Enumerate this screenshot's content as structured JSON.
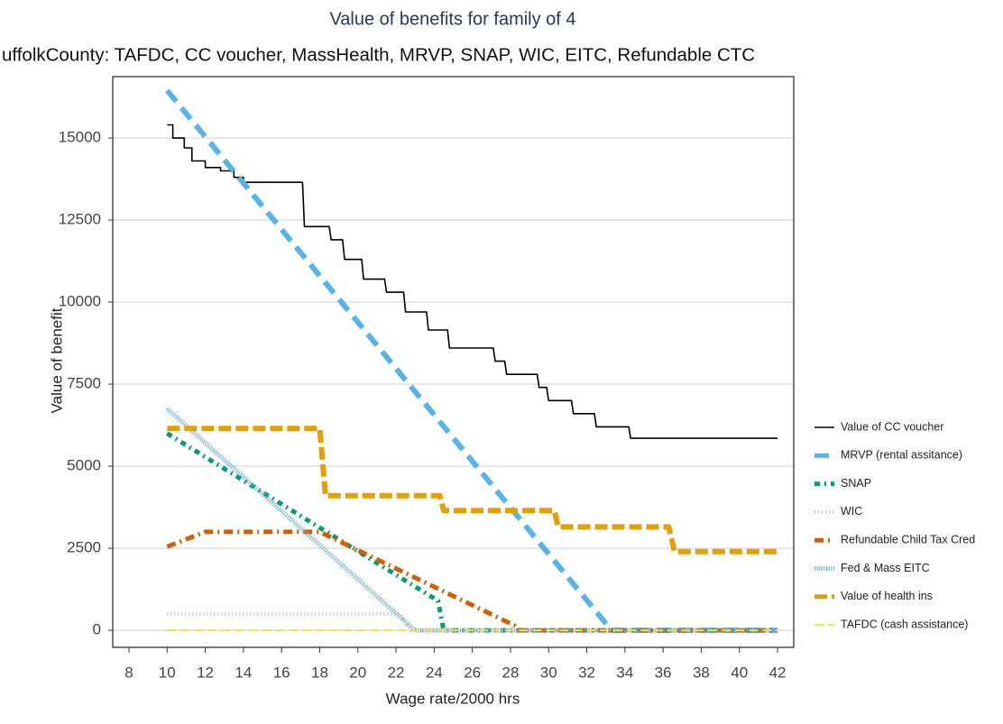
{
  "chart_data": {
    "type": "line",
    "title": "Value of benefits for family of 4",
    "subtitle": "uffolkCounty: TAFDC, CC voucher, MassHealth, MRVP, SNAP, WIC, EITC, Refundable CTC",
    "x_label": "Wage rate/2000 hrs",
    "y_label": "Value of benefit",
    "xlim": [
      7.15,
      42.85
    ],
    "xticks": [
      8,
      10,
      12,
      14,
      16,
      18,
      20,
      22,
      24,
      26,
      28,
      30,
      32,
      34,
      36,
      38,
      40,
      42
    ],
    "ylim": [
      -520,
      16870
    ],
    "yticks": [
      0,
      2500,
      5000,
      7500,
      10000,
      12500,
      15000
    ],
    "grid": true,
    "legend": "right",
    "series": [
      {
        "name": "Value of CC voucher",
        "color": "#000000",
        "x": [
          10,
          10.3,
          10.3,
          10.9,
          10.9,
          11.3,
          11.3,
          12,
          12,
          12.8,
          12.8,
          13.5,
          13.5,
          14,
          14,
          17.1,
          17.2,
          18.5,
          18.6,
          19.2,
          19.3,
          20.2,
          20.3,
          21.4,
          21.5,
          22.4,
          22.5,
          23.6,
          23.7,
          24.7,
          24.8,
          27.1,
          27.2,
          27.7,
          27.8,
          29.4,
          29.5,
          29.9,
          30,
          31.2,
          31.3,
          32.4,
          32.5,
          34.2,
          34.3,
          42
        ],
        "values": [
          15400,
          15400,
          15000,
          15000,
          14700,
          14700,
          14300,
          14300,
          14100,
          14100,
          14000,
          14000,
          13800,
          13800,
          13650,
          13650,
          12300,
          12300,
          11900,
          11900,
          11300,
          11300,
          10700,
          10700,
          10300,
          10300,
          9700,
          9700,
          9150,
          9150,
          8600,
          8600,
          8200,
          8200,
          7800,
          7800,
          7400,
          7400,
          7000,
          7000,
          6600,
          6600,
          6200,
          6200,
          5850,
          5850
        ]
      },
      {
        "name": "MRVP (rental assitance)",
        "color": "#56b4e9",
        "x": [
          10,
          33.3,
          42
        ],
        "values": [
          16450,
          0,
          0
        ]
      },
      {
        "name": "SNAP",
        "color": "#009e73",
        "x": [
          10,
          24.2,
          24.5,
          42
        ],
        "values": [
          6000,
          900,
          0,
          0
        ]
      },
      {
        "name": "WIC",
        "color": "#e9a3c9",
        "x": [
          10,
          22.2,
          22.8,
          42
        ],
        "values": [
          500,
          500,
          0,
          0
        ]
      },
      {
        "name": "Refundable Child Tax Cred",
        "color": "#d55e00",
        "x": [
          10,
          12,
          18,
          28.2,
          28.5,
          42
        ],
        "values": [
          2550,
          3000,
          3000,
          150,
          0,
          0
        ]
      },
      {
        "name": "Fed & Mass EITC",
        "color": "#5aa7d8",
        "x": [
          10,
          23,
          42
        ],
        "values": [
          6750,
          0,
          0
        ]
      },
      {
        "name": "Value of health ins",
        "color": "#e69f00",
        "x": [
          10,
          18,
          18.3,
          24.3,
          24.5,
          30.3,
          30.5,
          36.3,
          36.6,
          42
        ],
        "values": [
          6150,
          6150,
          4100,
          4100,
          3650,
          3650,
          3150,
          3150,
          2400,
          2400
        ]
      },
      {
        "name": "TAFDC (cash assistance)",
        "color": "#f0e442",
        "x": [
          10,
          42
        ],
        "values": [
          0,
          0
        ]
      }
    ]
  }
}
